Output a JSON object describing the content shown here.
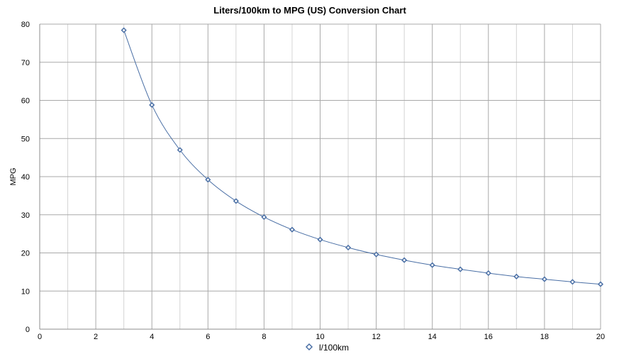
{
  "chart_data": {
    "type": "scatter",
    "title": "Liters/100km to MPG (US) Conversion Chart",
    "xlabel": "",
    "ylabel": "MPG",
    "xlim": [
      0,
      20
    ],
    "ylim": [
      0,
      80
    ],
    "x_ticks": [
      "0",
      "2",
      "4",
      "6",
      "8",
      "10",
      "12",
      "14",
      "16",
      "18",
      "20"
    ],
    "y_ticks": [
      "0",
      "10",
      "20",
      "30",
      "40",
      "50",
      "60",
      "70",
      "80"
    ],
    "grid": true,
    "minor_x_step": 1,
    "legend_position": "bottom",
    "series": [
      {
        "name": "l/100km",
        "color": "#4a6fa5",
        "marker": "diamond",
        "line": "smooth",
        "x": [
          3,
          4,
          5,
          6,
          7,
          8,
          9,
          10,
          11,
          12,
          13,
          14,
          15,
          16,
          17,
          18,
          19,
          20
        ],
        "y": [
          78.4,
          58.8,
          47.0,
          39.2,
          33.6,
          29.4,
          26.1,
          23.5,
          21.4,
          19.6,
          18.1,
          16.8,
          15.7,
          14.7,
          13.8,
          13.1,
          12.4,
          11.8
        ]
      }
    ]
  }
}
